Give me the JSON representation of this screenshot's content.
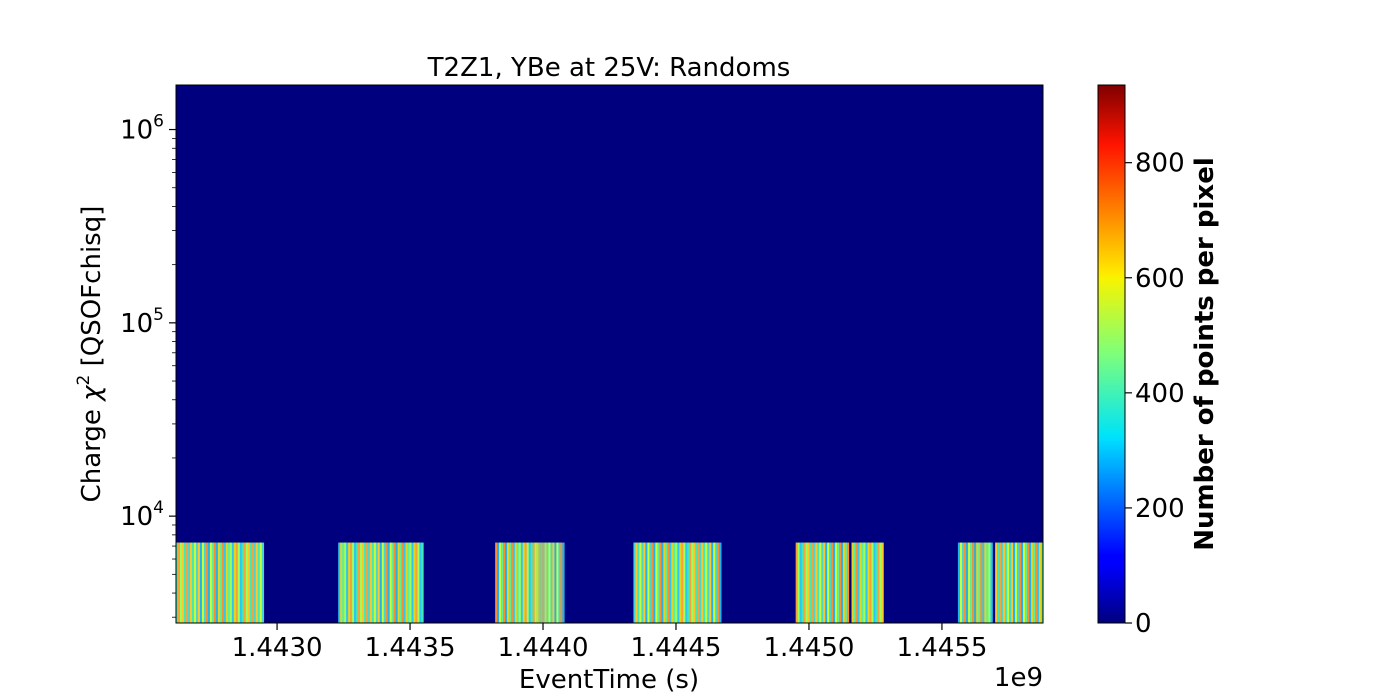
{
  "chart_data": {
    "type": "heatmap",
    "title": "T2Z1, YBe at 25V: Randoms",
    "xlabel": "EventTime (s)",
    "ylabel_prefix": "Charge ",
    "ylabel_symbol": "χ",
    "ylabel_sup": "2",
    "ylabel_suffix": " [QSOFchisq]",
    "x_offset_label": "1e9",
    "xlim": [
      1.44262,
      1.44588
    ],
    "ylim": [
      2800,
      1700000
    ],
    "yscale": "log",
    "grid": false,
    "x_ticks": [
      {
        "value": 1.443,
        "label": "1.4430"
      },
      {
        "value": 1.4435,
        "label": "1.4435"
      },
      {
        "value": 1.444,
        "label": "1.4440"
      },
      {
        "value": 1.4445,
        "label": "1.4445"
      },
      {
        "value": 1.445,
        "label": "1.4450"
      },
      {
        "value": 1.4455,
        "label": "1.4455"
      }
    ],
    "y_ticks": [
      {
        "value": 10000,
        "base": "10",
        "exp": "4"
      },
      {
        "value": 100000,
        "base": "10",
        "exp": "5"
      },
      {
        "value": 1000000,
        "base": "10",
        "exp": "6"
      }
    ],
    "band_y_range": [
      2800,
      7300
    ],
    "occupied_time_blocks": [
      {
        "start": 1.44262,
        "end": 1.44295
      },
      {
        "start": 1.44323,
        "end": 1.44355
      },
      {
        "start": 1.44382,
        "end": 1.44408
      },
      {
        "start": 1.44434,
        "end": 1.44467
      },
      {
        "start": 1.44495,
        "end": 1.44515
      },
      {
        "start": 1.44516,
        "end": 1.44528
      },
      {
        "start": 1.44556,
        "end": 1.44569
      },
      {
        "start": 1.4457,
        "end": 1.44588
      }
    ],
    "colorbar": {
      "label": "Number of points per pixel",
      "colormap": "jet",
      "range": [
        0,
        935
      ],
      "ticks": [
        0,
        200,
        400,
        600,
        800
      ]
    }
  }
}
